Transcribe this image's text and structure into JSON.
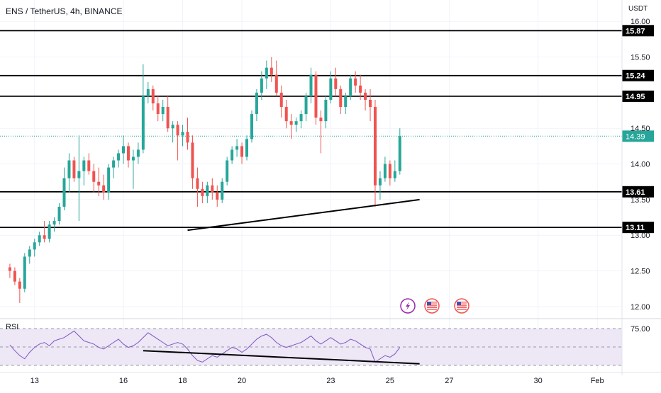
{
  "header": {
    "symbol": "ENS / TetherUS, 4h, BINANCE",
    "currency": "USDT"
  },
  "rsi_panel": {
    "label": "RSI",
    "level_label": "75.00"
  },
  "colors": {
    "up": "#26a69a",
    "down": "#ef5350",
    "level_line": "#000000",
    "last_price_badge": "#26a69a",
    "rsi_line": "#7e57c2",
    "rsi_band": "#ede7f6"
  },
  "icons": [
    "lightning-event-icon",
    "us-flag-event-icon",
    "us-flag-event-icon"
  ],
  "chart_data": {
    "type": "candlestick",
    "y_axis": {
      "range": [
        11.85,
        16.3
      ],
      "ticks": [
        "16.00",
        "15.50",
        "14.50",
        "14.00",
        "13.50",
        "13.00",
        "12.50",
        "12.00"
      ],
      "tick_values": [
        16.0,
        15.5,
        14.5,
        14.0,
        13.5,
        13.0,
        12.5,
        12.0
      ]
    },
    "x_axis": {
      "ticks": [
        "13",
        "16",
        "18",
        "20",
        "23",
        "25",
        "27",
        "30",
        "Feb"
      ],
      "tick_positions": [
        5,
        23,
        35,
        47,
        65,
        77,
        89,
        107,
        119
      ],
      "range": [
        -2,
        124
      ]
    },
    "horizontal_levels": [
      {
        "value": 15.87,
        "label": "15.87"
      },
      {
        "value": 15.24,
        "label": "15.24"
      },
      {
        "value": 14.95,
        "label": "14.95"
      },
      {
        "value": 13.61,
        "label": "13.61"
      },
      {
        "value": 13.11,
        "label": "13.11"
      }
    ],
    "top_boundary": 16.31,
    "last_price": {
      "value": 14.39,
      "label": "14.39"
    },
    "trendline": {
      "from": [
        36,
        13.07
      ],
      "to": [
        83,
        13.5
      ]
    },
    "candles": [
      [
        12.55,
        12.6,
        12.4,
        12.5
      ],
      [
        12.5,
        12.55,
        12.3,
        12.35
      ],
      [
        12.35,
        12.4,
        12.05,
        12.25
      ],
      [
        12.25,
        12.75,
        12.2,
        12.7
      ],
      [
        12.7,
        12.85,
        12.6,
        12.8
      ],
      [
        12.8,
        12.95,
        12.7,
        12.9
      ],
      [
        12.9,
        13.05,
        12.85,
        13.0
      ],
      [
        13.0,
        13.2,
        12.9,
        12.95
      ],
      [
        12.95,
        13.2,
        12.9,
        13.15
      ],
      [
        13.15,
        13.25,
        13.05,
        13.2
      ],
      [
        13.2,
        13.45,
        13.15,
        13.4
      ],
      [
        13.4,
        13.95,
        13.35,
        13.8
      ],
      [
        13.8,
        14.15,
        13.6,
        14.05
      ],
      [
        14.05,
        14.1,
        13.75,
        13.8
      ],
      [
        13.8,
        14.4,
        13.2,
        13.9
      ],
      [
        13.9,
        14.1,
        13.7,
        14.05
      ],
      [
        14.05,
        14.15,
        13.85,
        13.9
      ],
      [
        13.9,
        14.0,
        13.6,
        13.75
      ],
      [
        13.75,
        13.95,
        13.55,
        13.7
      ],
      [
        13.7,
        13.85,
        13.5,
        13.6
      ],
      [
        13.6,
        14.0,
        13.5,
        13.95
      ],
      [
        13.95,
        14.1,
        13.8,
        14.05
      ],
      [
        14.05,
        14.2,
        13.95,
        14.15
      ],
      [
        14.15,
        14.4,
        14.0,
        14.25
      ],
      [
        14.25,
        14.3,
        13.95,
        14.05
      ],
      [
        14.05,
        14.2,
        13.65,
        14.1
      ],
      [
        14.1,
        14.3,
        14.0,
        14.2
      ],
      [
        14.2,
        15.4,
        14.15,
        14.95
      ],
      [
        14.95,
        15.15,
        14.85,
        15.05
      ],
      [
        15.05,
        15.1,
        14.75,
        14.85
      ],
      [
        14.85,
        14.95,
        14.6,
        14.7
      ],
      [
        14.7,
        14.9,
        14.6,
        14.8
      ],
      [
        14.8,
        14.95,
        14.45,
        14.5
      ],
      [
        14.5,
        14.6,
        14.3,
        14.55
      ],
      [
        14.55,
        14.6,
        14.05,
        14.4
      ],
      [
        14.4,
        14.55,
        14.25,
        14.45
      ],
      [
        14.45,
        14.65,
        14.2,
        14.3
      ],
      [
        14.3,
        14.4,
        13.65,
        13.8
      ],
      [
        13.8,
        13.95,
        13.4,
        13.65
      ],
      [
        13.65,
        13.75,
        13.45,
        13.55
      ],
      [
        13.55,
        13.75,
        13.45,
        13.7
      ],
      [
        13.7,
        13.8,
        13.5,
        13.6
      ],
      [
        13.6,
        13.7,
        13.4,
        13.5
      ],
      [
        13.5,
        13.8,
        13.45,
        13.75
      ],
      [
        13.75,
        14.1,
        13.7,
        14.05
      ],
      [
        14.05,
        14.25,
        14.0,
        14.2
      ],
      [
        14.2,
        14.35,
        14.1,
        14.25
      ],
      [
        14.25,
        14.3,
        14.0,
        14.1
      ],
      [
        14.1,
        14.4,
        14.05,
        14.35
      ],
      [
        14.35,
        14.75,
        14.3,
        14.7
      ],
      [
        14.7,
        15.05,
        14.6,
        15.0
      ],
      [
        15.0,
        15.3,
        14.9,
        15.2
      ],
      [
        15.2,
        15.45,
        15.05,
        15.35
      ],
      [
        15.35,
        15.5,
        15.15,
        15.25
      ],
      [
        15.25,
        15.45,
        14.95,
        15.0
      ],
      [
        15.0,
        15.1,
        14.65,
        14.8
      ],
      [
        14.8,
        14.9,
        14.5,
        14.6
      ],
      [
        14.6,
        14.7,
        14.35,
        14.55
      ],
      [
        14.55,
        14.65,
        14.45,
        14.6
      ],
      [
        14.6,
        14.75,
        14.5,
        14.7
      ],
      [
        14.7,
        15.0,
        14.6,
        14.95
      ],
      [
        14.95,
        15.35,
        14.85,
        15.25
      ],
      [
        15.25,
        15.3,
        14.55,
        14.65
      ],
      [
        14.65,
        14.75,
        14.15,
        14.6
      ],
      [
        14.6,
        14.95,
        14.5,
        14.9
      ],
      [
        14.9,
        15.3,
        14.85,
        15.2
      ],
      [
        15.2,
        15.35,
        14.95,
        15.05
      ],
      [
        15.05,
        15.1,
        14.7,
        14.8
      ],
      [
        14.8,
        15.0,
        14.7,
        14.95
      ],
      [
        14.95,
        15.25,
        14.9,
        15.2
      ],
      [
        15.2,
        15.3,
        15.0,
        15.1
      ],
      [
        15.1,
        15.25,
        14.9,
        15.0
      ],
      [
        15.0,
        15.05,
        14.75,
        14.9
      ],
      [
        14.9,
        15.05,
        14.6,
        14.8
      ],
      [
        14.8,
        14.9,
        13.4,
        13.7
      ],
      [
        13.7,
        13.9,
        13.5,
        13.8
      ],
      [
        13.8,
        14.1,
        13.75,
        14.0
      ],
      [
        14.0,
        14.05,
        13.7,
        13.8
      ],
      [
        13.8,
        14.05,
        13.75,
        13.9
      ],
      [
        13.9,
        14.5,
        13.85,
        14.39
      ]
    ],
    "rsi": {
      "range": [
        0,
        100
      ],
      "levels": [
        30,
        50,
        75
      ],
      "values": [
        55,
        48,
        42,
        38,
        46,
        52,
        56,
        58,
        54,
        60,
        62,
        64,
        68,
        72,
        66,
        60,
        58,
        56,
        52,
        50,
        54,
        58,
        62,
        56,
        52,
        54,
        58,
        64,
        70,
        66,
        62,
        58,
        54,
        56,
        58,
        56,
        50,
        42,
        36,
        34,
        38,
        42,
        40,
        44,
        48,
        52,
        50,
        46,
        50,
        56,
        62,
        66,
        68,
        64,
        58,
        54,
        52,
        54,
        56,
        58,
        62,
        66,
        60,
        56,
        60,
        64,
        60,
        56,
        58,
        62,
        60,
        56,
        52,
        50,
        34,
        38,
        42,
        40,
        44,
        52
      ]
    }
  }
}
